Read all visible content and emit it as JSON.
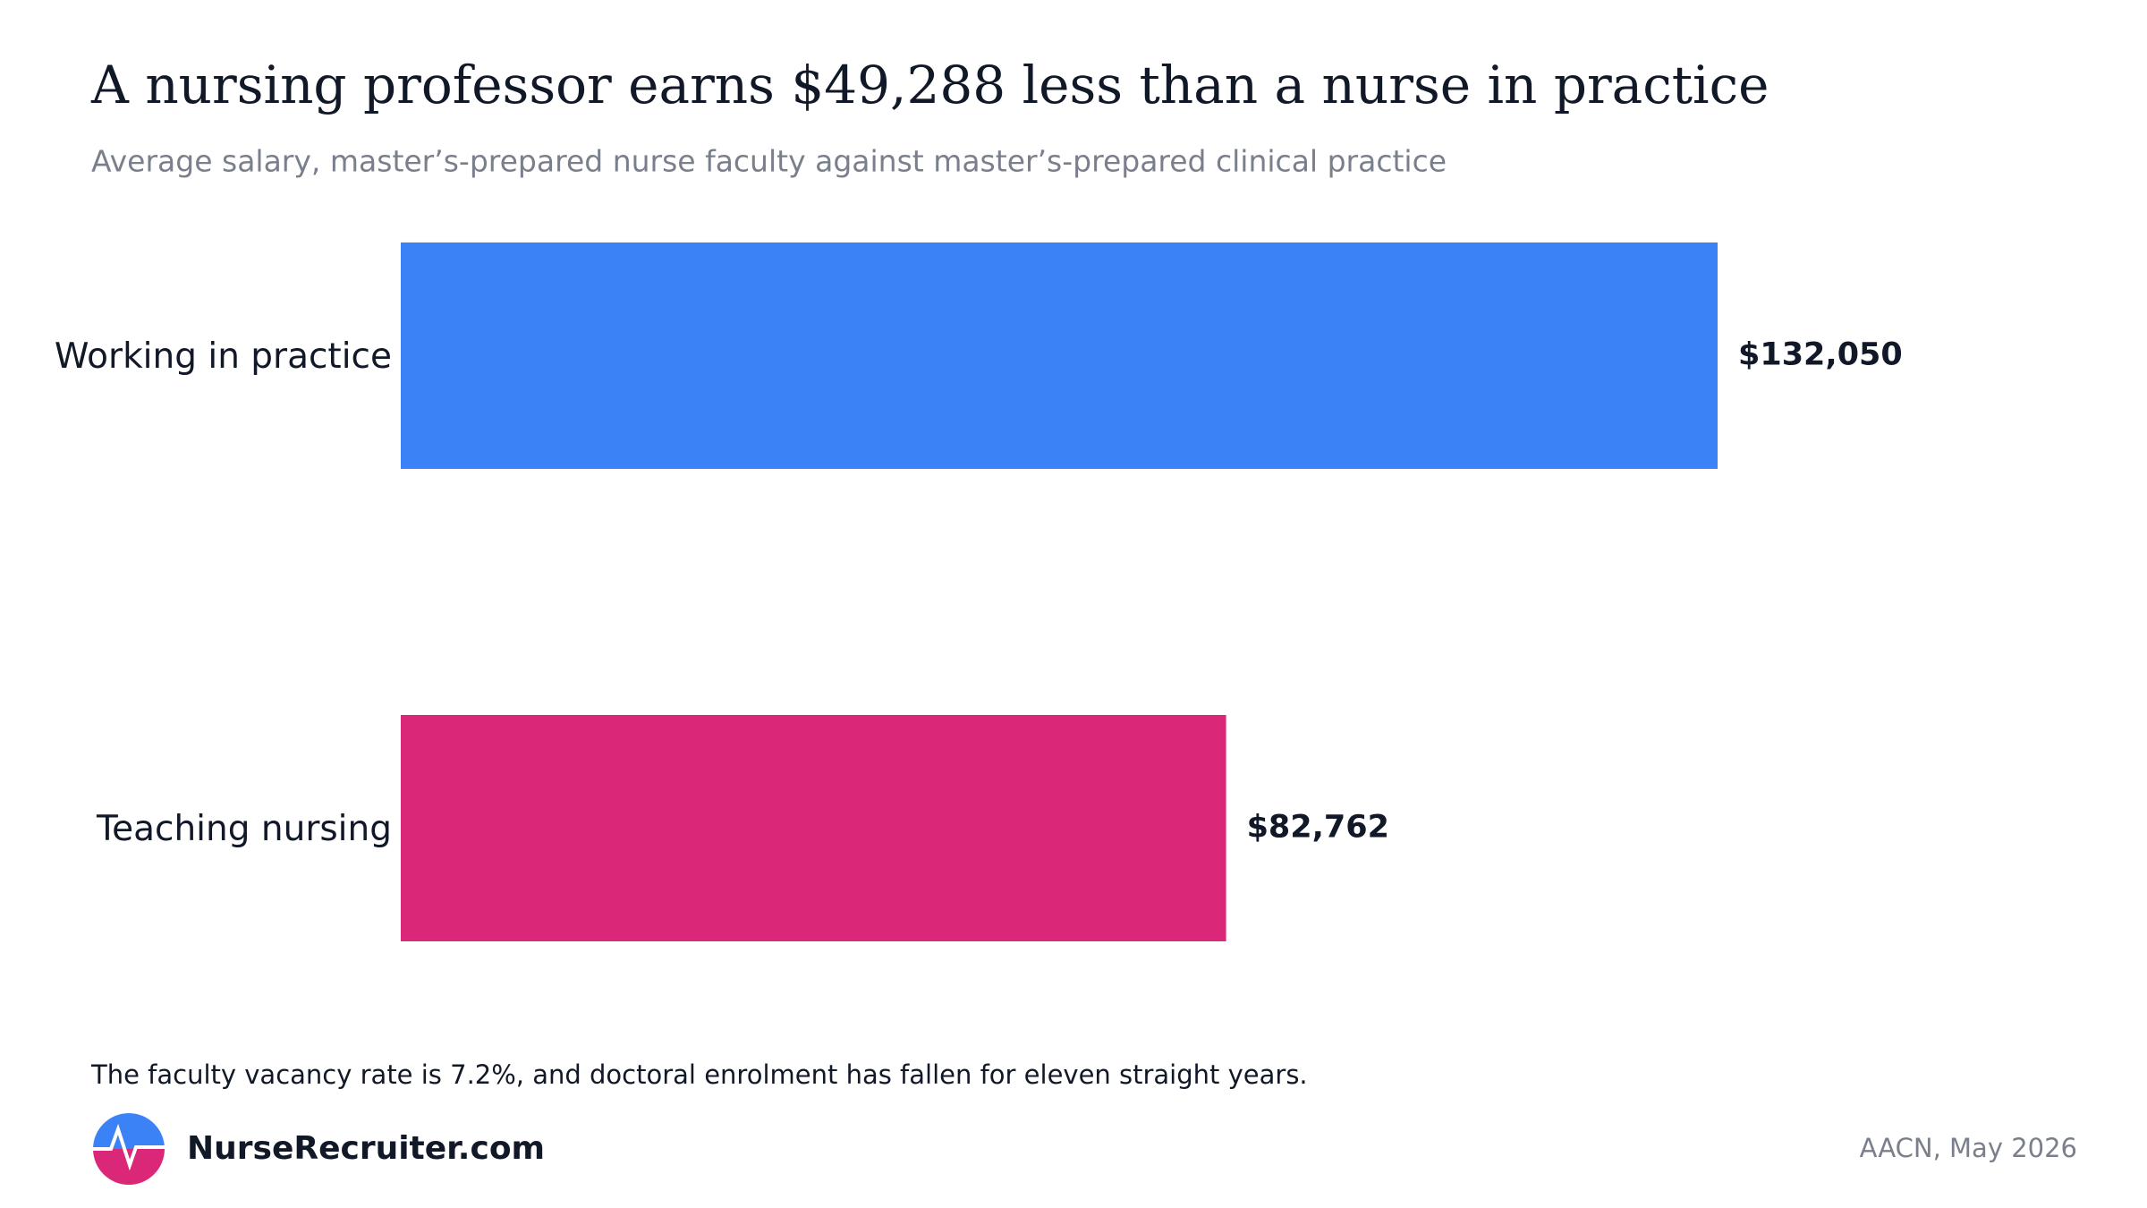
{
  "chart_data": {
    "type": "bar",
    "orientation": "horizontal",
    "title": "A nursing professor earns $49,288 less than a nurse in practice",
    "subtitle": "Average salary, master’s-prepared nurse faculty against master’s-prepared clinical practice",
    "categories": [
      "Working in practice",
      "Teaching nursing"
    ],
    "values": [
      132050,
      82762
    ],
    "value_labels": [
      "$132,050",
      "$82,762"
    ],
    "colors": [
      "#3b82f6",
      "#db2777"
    ],
    "note": "The faculty vacancy rate is 7.2%, and doctoral enrolment has fallen for eleven straight years.",
    "source": "AACN, May 2026"
  },
  "brand": "NurseRecruiter.com"
}
